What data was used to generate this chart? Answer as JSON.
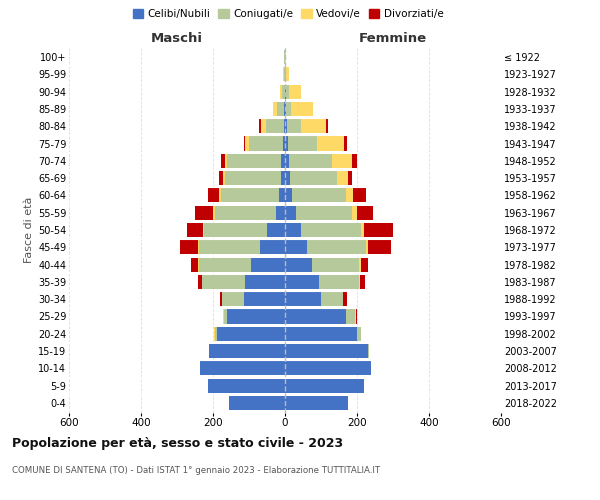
{
  "age_groups": [
    "0-4",
    "5-9",
    "10-14",
    "15-19",
    "20-24",
    "25-29",
    "30-34",
    "35-39",
    "40-44",
    "45-49",
    "50-54",
    "55-59",
    "60-64",
    "65-69",
    "70-74",
    "75-79",
    "80-84",
    "85-89",
    "90-94",
    "95-99",
    "100+"
  ],
  "birth_years": [
    "2018-2022",
    "2013-2017",
    "2008-2012",
    "2003-2007",
    "1998-2002",
    "1993-1997",
    "1988-1992",
    "1983-1987",
    "1978-1982",
    "1973-1977",
    "1968-1972",
    "1963-1967",
    "1958-1962",
    "1953-1957",
    "1948-1952",
    "1943-1947",
    "1938-1942",
    "1933-1937",
    "1928-1932",
    "1923-1927",
    "≤ 1922"
  ],
  "male": {
    "celibi": [
      155,
      215,
      235,
      210,
      190,
      160,
      115,
      110,
      95,
      70,
      50,
      25,
      18,
      12,
      10,
      5,
      3,
      2,
      1,
      1,
      1
    ],
    "coniugati": [
      0,
      0,
      0,
      2,
      5,
      10,
      60,
      120,
      145,
      170,
      175,
      170,
      160,
      155,
      150,
      95,
      50,
      20,
      8,
      3,
      1
    ],
    "vedovi": [
      0,
      0,
      0,
      0,
      1,
      1,
      1,
      1,
      2,
      2,
      3,
      5,
      5,
      5,
      8,
      10,
      15,
      10,
      5,
      1,
      0
    ],
    "divorziati": [
      0,
      0,
      0,
      0,
      2,
      2,
      5,
      10,
      20,
      50,
      45,
      50,
      30,
      10,
      10,
      5,
      5,
      0,
      0,
      0,
      0
    ]
  },
  "female": {
    "nubili": [
      175,
      220,
      240,
      230,
      200,
      170,
      100,
      95,
      75,
      60,
      45,
      30,
      20,
      15,
      10,
      8,
      5,
      3,
      2,
      1,
      1
    ],
    "coniugate": [
      0,
      0,
      0,
      3,
      10,
      25,
      60,
      110,
      130,
      165,
      165,
      155,
      150,
      130,
      120,
      80,
      40,
      15,
      8,
      2,
      0
    ],
    "vedove": [
      0,
      0,
      0,
      0,
      0,
      2,
      2,
      3,
      5,
      5,
      10,
      15,
      20,
      30,
      55,
      75,
      70,
      60,
      35,
      8,
      2
    ],
    "divorziate": [
      0,
      0,
      0,
      0,
      2,
      2,
      10,
      15,
      20,
      65,
      80,
      45,
      35,
      10,
      15,
      10,
      5,
      0,
      0,
      0,
      0
    ]
  },
  "colors": {
    "celibi_nubili": "#4472C4",
    "coniugati": "#B5C99A",
    "vedovi": "#FFD966",
    "divorziati": "#C00000"
  },
  "xlim": 600,
  "title": "Popolazione per età, sesso e stato civile - 2023",
  "subtitle": "COMUNE DI SANTENA (TO) - Dati ISTAT 1° gennaio 2023 - Elaborazione TUTTITALIA.IT",
  "ylabel_left": "Fasce di età",
  "xlabel_left": "Maschi",
  "xlabel_right": "Femmine",
  "legend_labels": [
    "Celibi/Nubili",
    "Coniugati/e",
    "Vedovi/e",
    "Divorziati/e"
  ],
  "background_color": "#ffffff",
  "grid_color": "#cccccc"
}
